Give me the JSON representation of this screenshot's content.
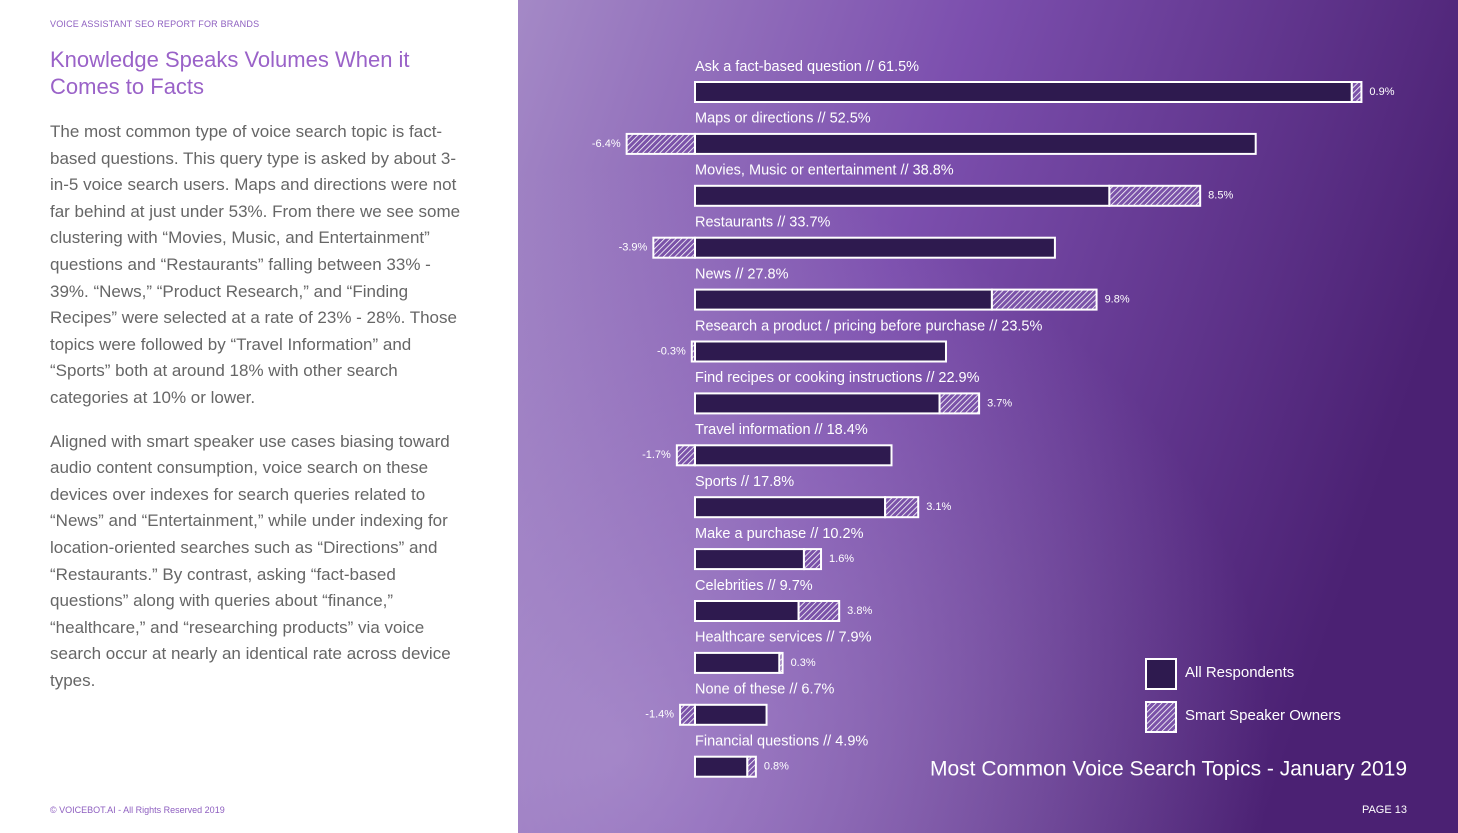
{
  "header": "VOICE ASSISTANT SEO REPORT FOR BRANDS",
  "heading": "Knowledge Speaks Volumes When it Comes to Facts",
  "paragraphs": [
    "The most common type of voice search topic is fact-based questions. This query type is asked by about 3-in-5 voice search users. Maps and directions were not far behind at just under 53%. From there we see some clustering with “Movies, Music, and Entertainment” questions and “Restaurants” falling between 33% - 39%. “News,” “Product Research,” and “Finding Recipes” were selected at a rate of 23% - 28%. Those topics were followed by “Travel Information” and “Sports” both at around 18% with other search categories at 10% or lower.",
    "Aligned with smart speaker use cases biasing toward audio content consumption, voice search on these devices over indexes for search queries related to “News” and “Entertainment,” while under indexing for location-oriented searches such as “Directions” and “Restaurants.” By contrast, asking “fact-based questions” along with queries about “finance,” “healthcare,” and “researching products” via voice search occur at nearly an identical rate across device types."
  ],
  "footer": "© VOICEBOT.AI - All Rights Reserved 2019",
  "page_number": "PAGE 13",
  "chart_data": {
    "type": "bar",
    "orientation": "horizontal",
    "title": "Most Common Voice Search Topics - January 2019",
    "categories": [
      "Ask a fact-based question // 61.5%",
      "Maps or directions // 52.5%",
      "Movies, Music or entertainment // 38.8%",
      "Restaurants // 33.7%",
      "News // 27.8%",
      "Research a product / pricing before purchase // 23.5%",
      "Find recipes or cooking instructions // 22.9%",
      "Travel information // 18.4%",
      "Sports // 17.8%",
      "Make a purchase // 10.2%",
      "Celebrities // 9.7%",
      "Healthcare services // 7.9%",
      "None of these // 6.7%",
      "Financial questions // 4.9%"
    ],
    "series": [
      {
        "name": "All Respondents",
        "color": "#2e1a4f",
        "values": [
          61.5,
          52.5,
          38.8,
          33.7,
          27.8,
          23.5,
          22.9,
          18.4,
          17.8,
          10.2,
          9.7,
          7.9,
          6.7,
          4.9
        ]
      },
      {
        "name": "Smart Speaker Owners",
        "color": "#ffffff",
        "pattern": "hatch",
        "values": [
          0.9,
          -6.4,
          8.5,
          -3.9,
          9.8,
          -0.3,
          3.7,
          -1.7,
          3.1,
          1.6,
          3.8,
          0.3,
          -1.4,
          0.8
        ],
        "value_labels": [
          "0.9%",
          "-6.4%",
          "8.5%",
          "-3.9%",
          "9.8%",
          "-0.3%",
          "3.7%",
          "-1.7%",
          "3.1%",
          "1.6%",
          "3.8%",
          "0.3%",
          "-1.4%",
          "0.8%"
        ]
      }
    ]
  }
}
